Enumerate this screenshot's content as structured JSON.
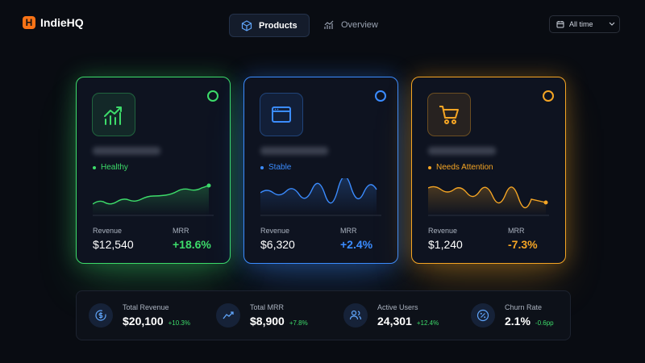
{
  "header": {
    "brand": "IndieHQ",
    "tabs": [
      "Products",
      "Overview"
    ],
    "range": "All time"
  },
  "cards": [
    {
      "status": "Healthy",
      "revenue_label": "Revenue",
      "revenue": "$12,540",
      "mrr_label": "MRR",
      "mrr": "+18.6%"
    },
    {
      "status": "Stable",
      "revenue_label": "Revenue",
      "revenue": "$6,320",
      "mrr_label": "MRR",
      "mrr": "+2.4%"
    },
    {
      "status": "Needs Attention",
      "revenue_label": "Revenue",
      "revenue": "$1,240",
      "mrr_label": "MRR",
      "mrr": "-7.3%"
    }
  ],
  "stats": [
    {
      "label": "Total Revenue",
      "value": "$20,100",
      "change": "+10.3%"
    },
    {
      "label": "Total MRR",
      "value": "$8,900",
      "change": "+7.8%"
    },
    {
      "label": "Active Users",
      "value": "24,301",
      "change": "+12.4%"
    },
    {
      "label": "Churn Rate",
      "value": "2.1%",
      "change": "-0.6pp"
    }
  ]
}
